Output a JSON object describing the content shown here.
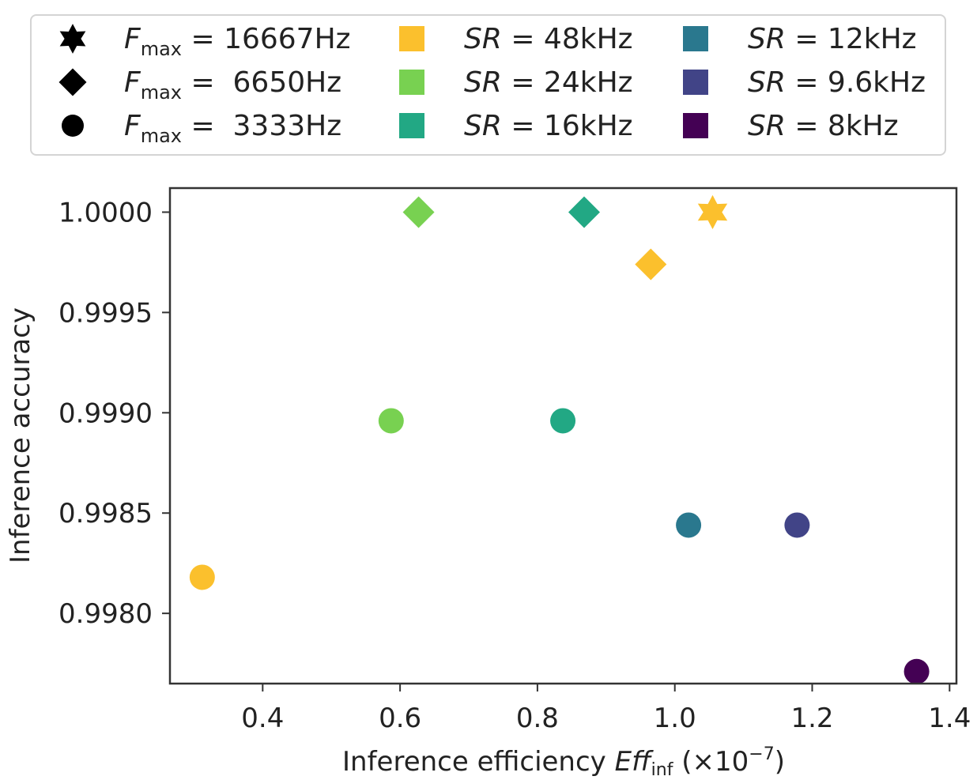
{
  "chart_data": {
    "type": "scatter",
    "xlabel": {
      "text": "Inference efficiency ",
      "var": "Eff",
      "sub": "inf",
      "unit": " (×10",
      "exp": "−7",
      "close": ")"
    },
    "ylabel": "Inference accuracy",
    "xlim": [
      0.265,
      1.41
    ],
    "ylim": [
      0.99765,
      1.00012
    ],
    "xticks": [
      0.4,
      0.6,
      0.8,
      1.0,
      1.2,
      1.4
    ],
    "xtick_labels": [
      "0.4",
      "0.6",
      "0.8",
      "1.0",
      "1.2",
      "1.4"
    ],
    "yticks": [
      0.998,
      0.9985,
      0.999,
      0.9995,
      1.0
    ],
    "ytick_labels": [
      "0.9980",
      "0.9985",
      "0.9990",
      "0.9995",
      "1.0000"
    ],
    "grid": false,
    "legend_placement": "top, outside plot",
    "marker_legend": [
      {
        "marker": "star",
        "var": "F",
        "sub": "max",
        "text": " = 16667Hz"
      },
      {
        "marker": "diamond",
        "var": "F",
        "sub": "max",
        "text": " =  6650Hz"
      },
      {
        "marker": "circle",
        "var": "F",
        "sub": "max",
        "text": " =  3333Hz"
      }
    ],
    "color_legend": [
      {
        "color": "#fbc02d",
        "var": "SR",
        "text": " = 48kHz"
      },
      {
        "color": "#78d151",
        "var": "SR",
        "text": " = 24kHz"
      },
      {
        "color": "#22a884",
        "var": "SR",
        "text": " = 16kHz"
      },
      {
        "color": "#2a788e",
        "var": "SR",
        "text": " = 12kHz"
      },
      {
        "color": "#414487",
        "var": "SR",
        "text": " = 9.6kHz"
      },
      {
        "color": "#440154",
        "var": "SR",
        "text": " = 8kHz"
      }
    ],
    "points": [
      {
        "x": 1.055,
        "y": 1.0,
        "marker": "star",
        "color": "#fbc02d"
      },
      {
        "x": 0.965,
        "y": 0.99974,
        "marker": "diamond",
        "color": "#fbc02d"
      },
      {
        "x": 0.627,
        "y": 1.0,
        "marker": "diamond",
        "color": "#78d151"
      },
      {
        "x": 0.868,
        "y": 1.0,
        "marker": "diamond",
        "color": "#22a884"
      },
      {
        "x": 0.312,
        "y": 0.99818,
        "marker": "circle",
        "color": "#fbc02d"
      },
      {
        "x": 0.587,
        "y": 0.99896,
        "marker": "circle",
        "color": "#78d151"
      },
      {
        "x": 0.837,
        "y": 0.99896,
        "marker": "circle",
        "color": "#22a884"
      },
      {
        "x": 1.02,
        "y": 0.99844,
        "marker": "circle",
        "color": "#2a788e"
      },
      {
        "x": 1.178,
        "y": 0.99844,
        "marker": "circle",
        "color": "#414487"
      },
      {
        "x": 1.352,
        "y": 0.99771,
        "marker": "circle",
        "color": "#440154"
      }
    ]
  }
}
